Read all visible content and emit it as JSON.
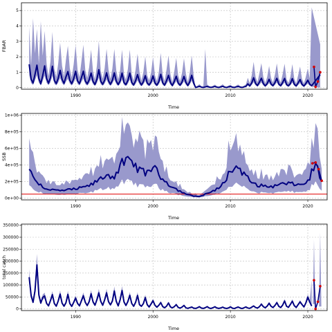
{
  "chart_data": [
    {
      "type": "area",
      "title": "",
      "xlabel": "Time",
      "ylabel": "FBAR",
      "xlim": [
        1983,
        2022.5
      ],
      "ylim": [
        -0.1,
        5.5
      ],
      "x_ticks": [
        1990,
        2000,
        2010,
        2020
      ],
      "x_tick_labels": [
        "1990",
        "2000",
        "2010",
        "2020"
      ],
      "y_ticks": [
        0,
        1,
        2,
        3,
        4,
        5
      ],
      "y_tick_labels": [
        "0",
        "1",
        "2",
        "3",
        "4",
        "5"
      ],
      "grid": true,
      "series": [
        {
          "x_start": 1984,
          "x_end": 2020.5,
          "points_per_year": 4,
          "median_base": 0.6,
          "median_peak": [
            1.5,
            0.25
          ],
          "median_decay": 0.06,
          "quiet_period": [
            2005.5,
            2012
          ],
          "quiet_level": 0.05,
          "upper_factor": 2.6,
          "lower_factor": 0.55,
          "spikes": [
            [
              1984.6,
              4.5
            ],
            [
              1985.6,
              4.3
            ],
            [
              2006.8,
              2.5
            ],
            [
              2020.9,
              5.2
            ],
            [
              2021.6,
              2.8
            ]
          ],
          "color": "#000080",
          "band_color": "#9999cc"
        }
      ],
      "highlight_points": {
        "color": "#d40000",
        "x": [
          2020.8,
          2021.0,
          2021.3,
          2021.6
        ],
        "y": [
          1.35,
          0.05,
          0.4,
          1.0
        ]
      }
    },
    {
      "type": "area",
      "title": "",
      "xlabel": "Time",
      "ylabel": "SSB",
      "xlim": [
        1983,
        2022.5
      ],
      "ylim": [
        -20000,
        1020000
      ],
      "x_ticks": [
        1990,
        2000,
        2010,
        2020
      ],
      "x_tick_labels": [
        "1990",
        "2000",
        "2010",
        "2020"
      ],
      "y_ticks": [
        0,
        200000,
        400000,
        600000,
        800000,
        1000000
      ],
      "y_tick_labels": [
        "0e+00",
        "2e+05",
        "4e+05",
        "6e+05",
        "8e+05",
        "1e+06"
      ],
      "grid": true,
      "reference_line": {
        "y": 50000,
        "color": "#e00000"
      },
      "median_curve": {
        "x": [
          1984,
          1985,
          1986,
          1987,
          1988,
          1989,
          1990,
          1991,
          1992,
          1993,
          1994,
          1995,
          1996,
          1997,
          1998,
          1999,
          2000,
          2001,
          2002,
          2003,
          2004,
          2005,
          2006,
          2007,
          2008,
          2009,
          2010,
          2011,
          2012,
          2013,
          2014,
          2015,
          2016,
          2017,
          2018,
          2019,
          2020,
          2021,
          2021.8
        ],
        "y": [
          330000,
          200000,
          120000,
          100000,
          90000,
          100000,
          110000,
          130000,
          160000,
          220000,
          280000,
          260000,
          420000,
          450000,
          360000,
          300000,
          380000,
          260000,
          170000,
          110000,
          60000,
          30000,
          20000,
          60000,
          90000,
          170000,
          330000,
          380000,
          260000,
          170000,
          150000,
          140000,
          150000,
          180000,
          170000,
          160000,
          200000,
          420000,
          200000
        ]
      },
      "band_ratio": [
        0.45,
        1.75
      ],
      "wiggle": 0.14,
      "color": "#000080",
      "band_color": "#9999cc",
      "highlight_points": {
        "color": "#d40000",
        "x": [
          2020.6,
          2021.0,
          2021.4,
          2021.8
        ],
        "y": [
          420000,
          430000,
          350000,
          210000
        ]
      }
    },
    {
      "type": "area",
      "title": "",
      "xlabel": "Time",
      "ylabel": "total catch",
      "xlim": [
        1983,
        2022.5
      ],
      "ylim": [
        -7000,
        355000
      ],
      "x_ticks": [
        1990,
        2000,
        2010,
        2020
      ],
      "x_tick_labels": [
        "1990",
        "2000",
        "2010",
        "2020"
      ],
      "y_ticks": [
        0,
        50000,
        100000,
        150000,
        200000,
        250000,
        300000,
        350000
      ],
      "y_tick_labels": [
        "0",
        "50000",
        "100000",
        "150000",
        "200000",
        "250000",
        "300000",
        "350000"
      ],
      "grid": true,
      "series": [
        {
          "x_start": 1984,
          "x_end": 2020.5,
          "points_per_year": 4,
          "levels": [
            [
              1984,
              70000
            ],
            [
              1985,
              95000
            ],
            [
              1986,
              35000
            ],
            [
              1990,
              30000
            ],
            [
              1993,
              45000
            ],
            [
              1996,
              40000
            ],
            [
              2000,
              20000
            ],
            [
              2003,
              10000
            ],
            [
              2005,
              5000
            ],
            [
              2012,
              5000
            ],
            [
              2015,
              15000
            ],
            [
              2019,
              20000
            ],
            [
              2020.5,
              40000
            ]
          ],
          "spikes": [
            [
              1984.8,
              100000
            ],
            [
              2020.9,
              120000
            ]
          ],
          "color": "#000080",
          "band_color": "#9999cc",
          "band_ratio": [
            0.8,
            1.25
          ]
        }
      ],
      "tail_band": [
        {
          "x": 2020.8,
          "lo": 20000,
          "hi": 290000
        },
        {
          "x": 2021.6,
          "lo": 10000,
          "hi": 320000
        }
      ],
      "highlight_points": {
        "color": "#d40000",
        "x": [
          2020.8,
          2021.0,
          2021.3,
          2021.6
        ],
        "y": [
          120000,
          0,
          30000,
          95000
        ]
      }
    }
  ]
}
